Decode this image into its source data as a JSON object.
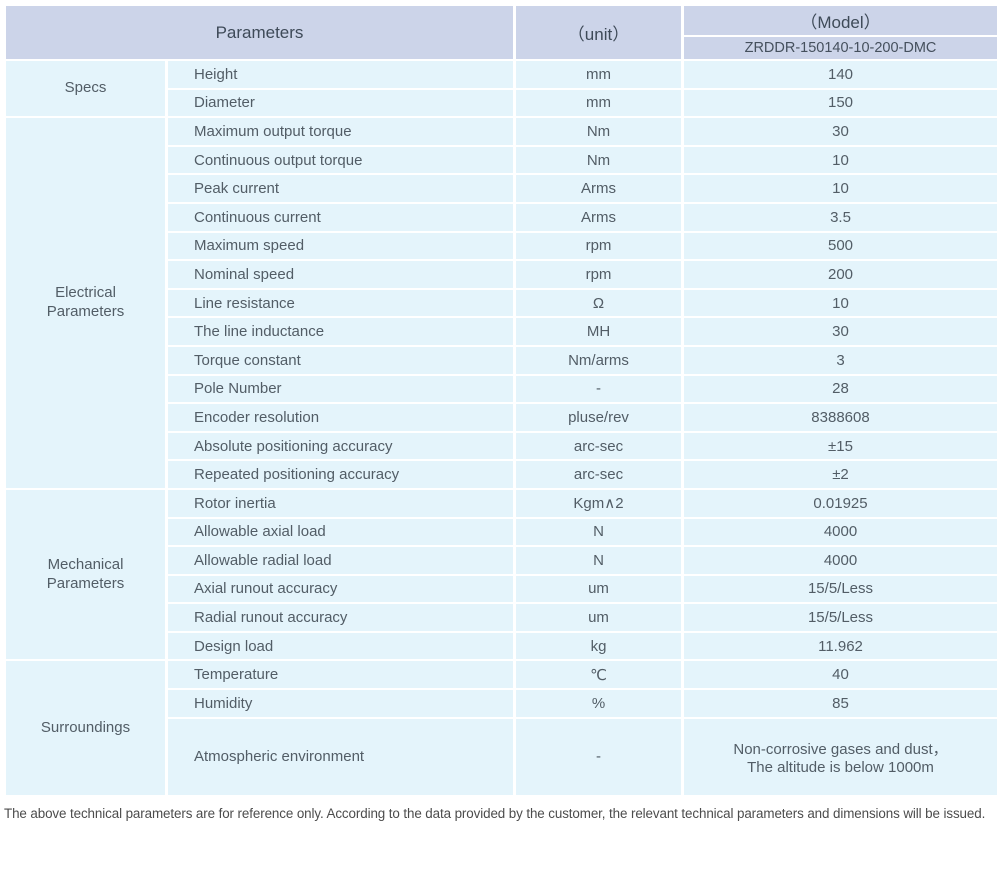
{
  "header": {
    "parameters_label": "Parameters",
    "unit_label": "（unit）",
    "model_label": "（Model）",
    "model_number": "ZRDDR-150140-10-200-DMC"
  },
  "sections": [
    {
      "name": "Specs",
      "rows": [
        {
          "parameter": "Height",
          "unit": "mm",
          "value": "140"
        },
        {
          "parameter": "Diameter",
          "unit": "mm",
          "value": "150"
        }
      ]
    },
    {
      "name": "Electrical\nParameters",
      "rows": [
        {
          "parameter": "Maximum output torque",
          "unit": "Nm",
          "value": "30"
        },
        {
          "parameter": "Continuous output torque",
          "unit": "Nm",
          "value": "10"
        },
        {
          "parameter": "Peak current",
          "unit": "Arms",
          "value": "10"
        },
        {
          "parameter": "Continuous current",
          "unit": "Arms",
          "value": "3.5"
        },
        {
          "parameter": "Maximum speed",
          "unit": "rpm",
          "value": "500"
        },
        {
          "parameter": "Nominal speed",
          "unit": "rpm",
          "value": "200"
        },
        {
          "parameter": "Line resistance",
          "unit": "Ω",
          "value": "10"
        },
        {
          "parameter": "The line inductance",
          "unit": "MH",
          "value": "30"
        },
        {
          "parameter": "Torque constant",
          "unit": "Nm/arms",
          "value": "3"
        },
        {
          "parameter": "Pole Number",
          "unit": "-",
          "value": "28"
        },
        {
          "parameter": "Encoder resolution",
          "unit": "pluse/rev",
          "value": "8388608"
        },
        {
          "parameter": "Absolute positioning accuracy",
          "unit": "arc-sec",
          "value": "±15"
        },
        {
          "parameter": "Repeated positioning accuracy",
          "unit": "arc-sec",
          "value": "±2"
        }
      ]
    },
    {
      "name": "Mechanical\nParameters",
      "rows": [
        {
          "parameter": "Rotor inertia",
          "unit": "Kgm∧2",
          "value": "0.01925"
        },
        {
          "parameter": "Allowable axial load",
          "unit": "N",
          "value": "4000"
        },
        {
          "parameter": "Allowable radial load",
          "unit": "N",
          "value": "4000"
        },
        {
          "parameter": "Axial runout accuracy",
          "unit": "um",
          "value": "15/5/Less"
        },
        {
          "parameter": "Radial runout accuracy",
          "unit": "um",
          "value": "15/5/Less"
        },
        {
          "parameter": "Design load",
          "unit": "kg",
          "value": "11.962"
        }
      ]
    },
    {
      "name": "Surroundings",
      "rows": [
        {
          "parameter": "Temperature",
          "unit": "℃",
          "value": "40"
        },
        {
          "parameter": "Humidity",
          "unit": "%",
          "value": "85"
        },
        {
          "parameter": "Atmospheric environment",
          "unit": "-",
          "value": "Non-corrosive gases and dust，\nThe altitude is below 1000m"
        }
      ]
    }
  ],
  "footnote": "The above technical parameters are for reference only. According to the data provided by the customer, the relevant technical parameters and dimensions will be issued.",
  "colors": {
    "header_bg": "#ccd4e9",
    "body_bg": "#e4f4fb",
    "border": "#ffffff",
    "header_text": "#3e4a58",
    "body_text": "#525d66",
    "footnote_text": "#4c4c4c"
  }
}
